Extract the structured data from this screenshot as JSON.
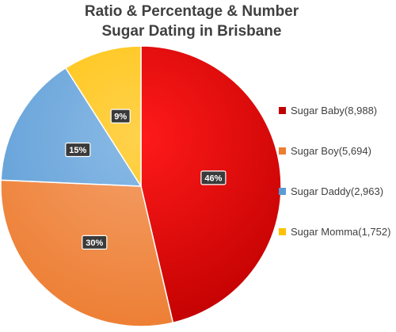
{
  "chart_data": {
    "type": "pie",
    "title_lines": [
      "Ratio & Percentage & Number",
      "Sugar Dating in Brisbane"
    ],
    "slices": [
      {
        "label": "Sugar Baby(8,988)",
        "value": 8988,
        "percent_label": "46%",
        "color": "#c00000",
        "color_light": "#ff1a1a"
      },
      {
        "label": "Sugar Boy(5,694)",
        "value": 5694,
        "percent_label": "30%",
        "color": "#ed7d31",
        "color_light": "#f4a06a"
      },
      {
        "label": "Sugar Daddy(2,963)",
        "value": 2963,
        "percent_label": "15%",
        "color": "#5b9bd5",
        "color_light": "#8bbbe6"
      },
      {
        "label": "Sugar Momma(1,752)",
        "value": 1752,
        "percent_label": "9%",
        "color": "#ffc000",
        "color_light": "#ffd24d"
      }
    ],
    "start_angle_deg": 0,
    "direction": "clockwise",
    "legend_position": "right"
  }
}
